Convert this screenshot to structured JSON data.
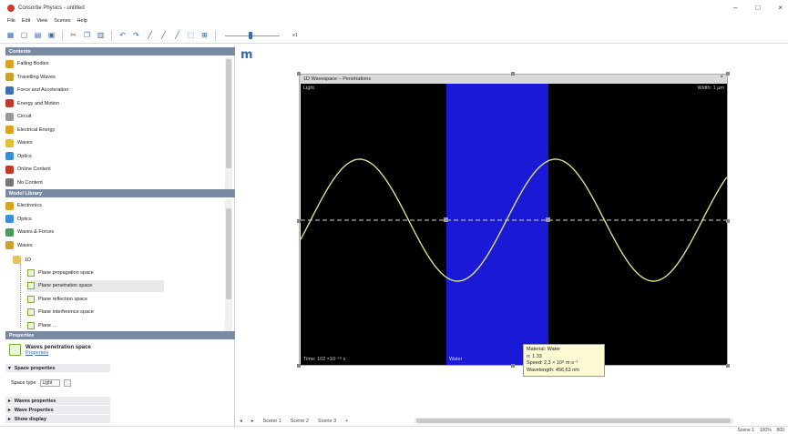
{
  "window": {
    "title": "Consortie Physics - untitled",
    "controls": [
      "–",
      "□",
      "×"
    ]
  },
  "menu": [
    "File",
    "Edit",
    "View",
    "Scenes",
    "Help"
  ],
  "toolbar": {
    "buttons": [
      "grid-icon",
      "new-icon",
      "open-icon",
      "save-icon",
      "cut-icon",
      "copy-icon",
      "paste-icon",
      "undo-icon",
      "redo-icon",
      "pen-icon",
      "pen-icon",
      "pen-icon",
      "select-icon",
      "zoom-icon"
    ],
    "speed_label": "x1"
  },
  "contents": {
    "header": "Contents",
    "items": [
      {
        "label": "Falling Bodies",
        "color": "#d9a520"
      },
      {
        "label": "Travelling Waves",
        "color": "#c8a12e"
      },
      {
        "label": "Force and Acceleration",
        "color": "#3b6fb6"
      },
      {
        "label": "Energy and Motion",
        "color": "#c0392b"
      },
      {
        "label": "Circuit",
        "color": "#9a9a9a"
      },
      {
        "label": "Electrical Energy",
        "color": "#d9a520"
      },
      {
        "label": "Waves",
        "color": "#e0c030"
      },
      {
        "label": "Optics",
        "color": "#3b8fd6"
      },
      {
        "label": "Online Content",
        "color": "#c0392b"
      },
      {
        "label": "No Content",
        "color": "#777777"
      }
    ]
  },
  "model_library": {
    "header": "Model Library",
    "items": [
      {
        "label": "Electronics",
        "color": "#d9a520"
      },
      {
        "label": "Optics",
        "color": "#3b8fd6"
      },
      {
        "label": "Waves & Forces",
        "color": "#4a9a5a"
      },
      {
        "label": "Waves",
        "color": "#c8a12e"
      }
    ],
    "folder": "1D",
    "leaves": [
      "Plane propagation space",
      "Plane penetration space",
      "Plane reflection space",
      "Plane interference space",
      "Plane …"
    ],
    "selected_index": 1
  },
  "properties": {
    "header": "Properties",
    "title": "Waves penetration space",
    "link": "Properties",
    "sections": [
      "Space properties",
      "Waves properties",
      "Wave Properties",
      "Show display"
    ],
    "field_label": "Space type",
    "field_value": "Light"
  },
  "workspace": {
    "logo": "m",
    "view_title": "1D Wavespace – Penetrations",
    "close_glyph": "×",
    "label_tl": "Light",
    "label_tr": "Width: 1 μm",
    "label_bl": "Time: 102 ×10⁻¹⁶ s",
    "medium_label": "Water",
    "colors": {
      "medium": "#1a1ad6",
      "wave": "#d6e08a",
      "axis": "#cfcfcf"
    }
  },
  "tooltip": {
    "lines": [
      "Material: Water",
      "n: 1.33",
      "Speed: 2,3 × 10⁸ m·s⁻¹",
      "Wavelength: 456,63 nm"
    ]
  },
  "tabs": [
    "Scene 1",
    "Scene 2",
    "Scene 3",
    "+"
  ],
  "status": [
    "Scene 1",
    "100%",
    "800"
  ]
}
